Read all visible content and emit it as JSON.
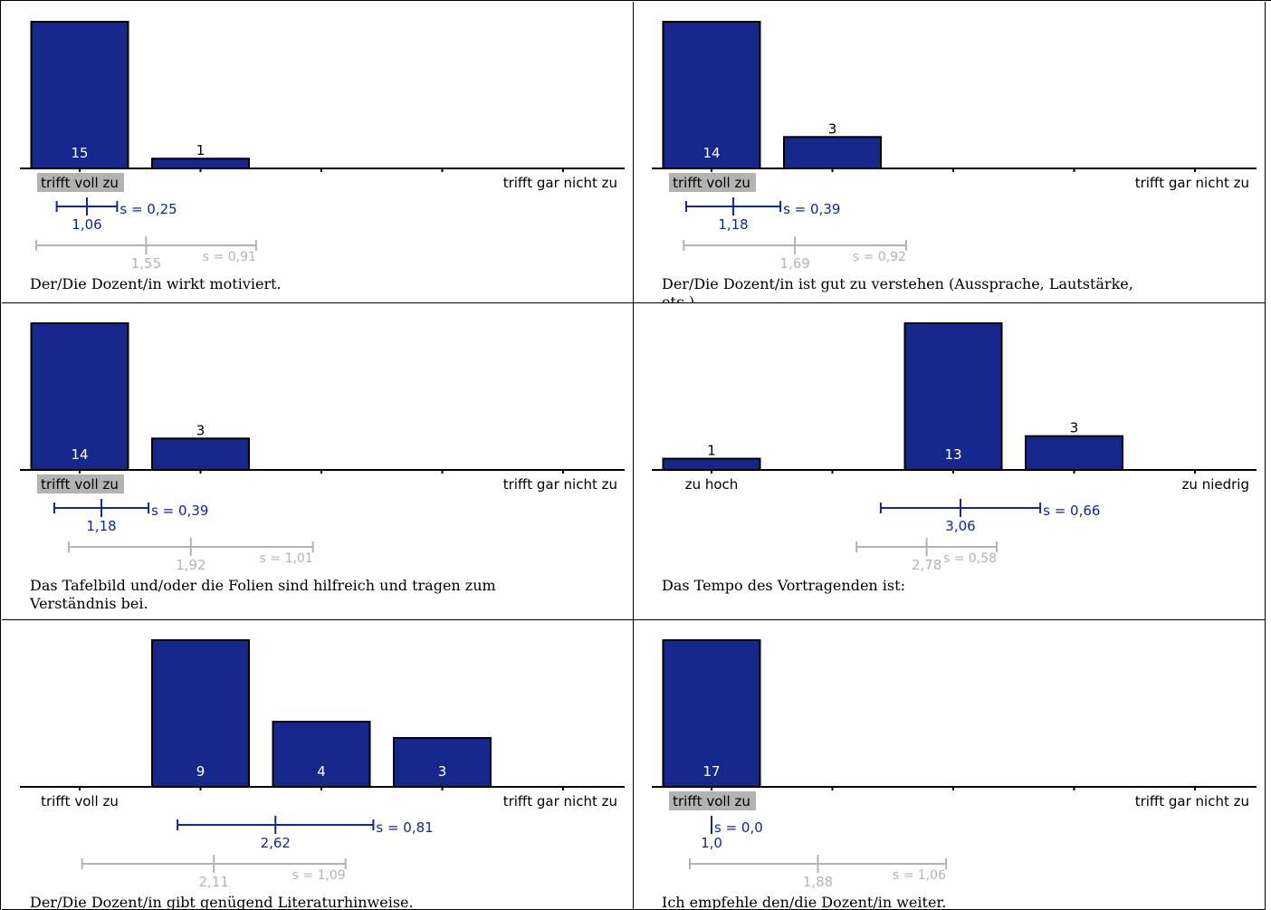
{
  "colors": {
    "bar": "#15278a",
    "own_stat": "#15278a",
    "ref_stat": "#b3b3b3",
    "highlight_label_bg": "#b3b3b3",
    "axis": "#000000"
  },
  "chart_data": [
    {
      "type": "bar",
      "title": "Der/Die Dozent/in wirkt motiviert.",
      "categories": [
        "1",
        "2",
        "3",
        "4",
        "5"
      ],
      "values": [
        15,
        1,
        0,
        0,
        0
      ],
      "left_label": "trifft voll zu",
      "right_label": "trifft  gar nicht zu",
      "left_label_highlighted": true,
      "mean": "1,06",
      "sd": "s = 0,25",
      "mean_value": 1.06,
      "sd_value": 0.25,
      "ref_mean": "1,55",
      "ref_sd": "s = 0,91",
      "ref_mean_value": 1.55,
      "ref_sd_value": 0.91
    },
    {
      "type": "bar",
      "title": "Der/Die Dozent/in ist gut zu verstehen (Aussprache, Lautstärke, etc.).",
      "categories": [
        "1",
        "2",
        "3",
        "4",
        "5"
      ],
      "values": [
        14,
        3,
        0,
        0,
        0
      ],
      "left_label": "trifft voll zu",
      "right_label": "trifft  gar nicht zu",
      "left_label_highlighted": true,
      "mean": "1,18",
      "sd": "s = 0,39",
      "mean_value": 1.18,
      "sd_value": 0.39,
      "ref_mean": "1,69",
      "ref_sd": "s = 0,92",
      "ref_mean_value": 1.69,
      "ref_sd_value": 0.92
    },
    {
      "type": "bar",
      "title": "Das Tafelbild und/oder die Folien sind hilfreich und tragen zum Verständnis bei.",
      "categories": [
        "1",
        "2",
        "3",
        "4",
        "5"
      ],
      "values": [
        14,
        3,
        0,
        0,
        0
      ],
      "left_label": "trifft voll zu",
      "right_label": "trifft  gar nicht zu",
      "left_label_highlighted": true,
      "mean": "1,18",
      "sd": "s = 0,39",
      "mean_value": 1.18,
      "sd_value": 0.39,
      "ref_mean": "1,92",
      "ref_sd": "s = 1,01",
      "ref_mean_value": 1.92,
      "ref_sd_value": 1.01
    },
    {
      "type": "bar",
      "title": "Das Tempo des Vortragenden ist:",
      "categories": [
        "1",
        "2",
        "3",
        "4",
        "5"
      ],
      "values": [
        1,
        0,
        13,
        3,
        0
      ],
      "left_label": "zu hoch",
      "right_label": "zu niedrig",
      "left_label_highlighted": false,
      "mean": "3,06",
      "sd": "s = 0,66",
      "mean_value": 3.06,
      "sd_value": 0.66,
      "ref_mean": "2,78",
      "ref_sd": "s = 0,58",
      "ref_mean_value": 2.78,
      "ref_sd_value": 0.58
    },
    {
      "type": "bar",
      "title": "Der/Die Dozent/in gibt genügend Literaturhinweise.",
      "categories": [
        "1",
        "2",
        "3",
        "4",
        "5"
      ],
      "values": [
        0,
        9,
        4,
        3,
        0
      ],
      "left_label": "trifft voll zu",
      "right_label": "trifft  gar nicht zu",
      "left_label_highlighted": false,
      "mean": "2,62",
      "sd": "s = 0,81",
      "mean_value": 2.62,
      "sd_value": 0.81,
      "ref_mean": "2,11",
      "ref_sd": "s = 1,09",
      "ref_mean_value": 2.11,
      "ref_sd_value": 1.09
    },
    {
      "type": "bar",
      "title": "Ich empfehle den/die Dozent/in weiter.",
      "categories": [
        "1",
        "2",
        "3",
        "4",
        "5"
      ],
      "values": [
        17,
        0,
        0,
        0,
        0
      ],
      "left_label": "trifft voll zu",
      "right_label": "trifft  gar nicht zu",
      "left_label_highlighted": true,
      "mean": "1,0",
      "sd": "s = 0,0",
      "mean_value": 1.0,
      "sd_value": 0.0,
      "ref_mean": "1,88",
      "ref_sd": "s = 1,06",
      "ref_mean_value": 1.88,
      "ref_sd_value": 1.06
    }
  ]
}
